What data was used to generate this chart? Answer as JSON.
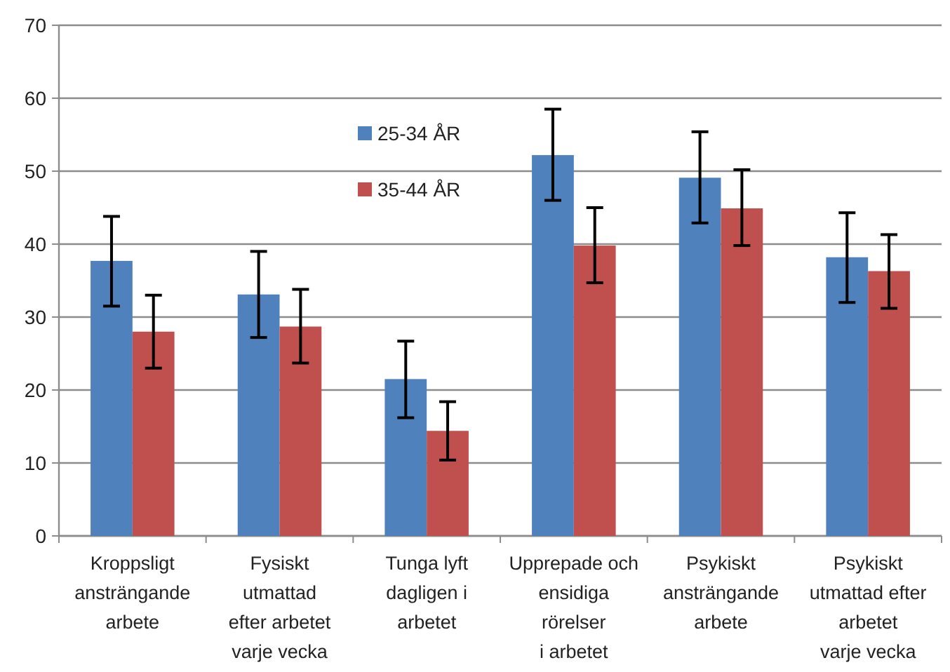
{
  "chart_data": {
    "type": "bar",
    "categories": [
      "Kroppsligt\nansträngande\narbete",
      "Fysiskt\nutmattad\nefter arbetet\nvarje vecka",
      "Tunga lyft\ndagligen i\narbetet",
      "Upprepade och\nensidiga\nrörelser\ni arbetet",
      "Psykiskt\nansträngande\narbete",
      "Psykiskt\nutmattad efter\narbetet\nvarje vecka"
    ],
    "series": [
      {
        "name": "25-34 ÅR",
        "color": "#4f81bd",
        "values": [
          37.7,
          33.1,
          21.5,
          52.2,
          49.1,
          38.2
        ],
        "errors": [
          [
            31.5,
            43.8
          ],
          [
            27.2,
            39
          ],
          [
            16.2,
            26.7
          ],
          [
            46,
            58.5
          ],
          [
            42.9,
            55.4
          ],
          [
            32,
            44.3
          ]
        ]
      },
      {
        "name": "35-44 ÅR",
        "color": "#c0504d",
        "values": [
          28,
          28.7,
          14.4,
          39.8,
          44.9,
          36.3
        ],
        "errors": [
          [
            23,
            33
          ],
          [
            23.7,
            33.8
          ],
          [
            10.4,
            18.4
          ],
          [
            34.7,
            45
          ],
          [
            39.8,
            50.2
          ],
          [
            31.2,
            41.3
          ]
        ]
      }
    ],
    "ylim": [
      0,
      70
    ],
    "yticks": [
      0,
      10,
      20,
      30,
      40,
      50,
      60,
      70
    ],
    "grid": "y",
    "legend": "top"
  }
}
